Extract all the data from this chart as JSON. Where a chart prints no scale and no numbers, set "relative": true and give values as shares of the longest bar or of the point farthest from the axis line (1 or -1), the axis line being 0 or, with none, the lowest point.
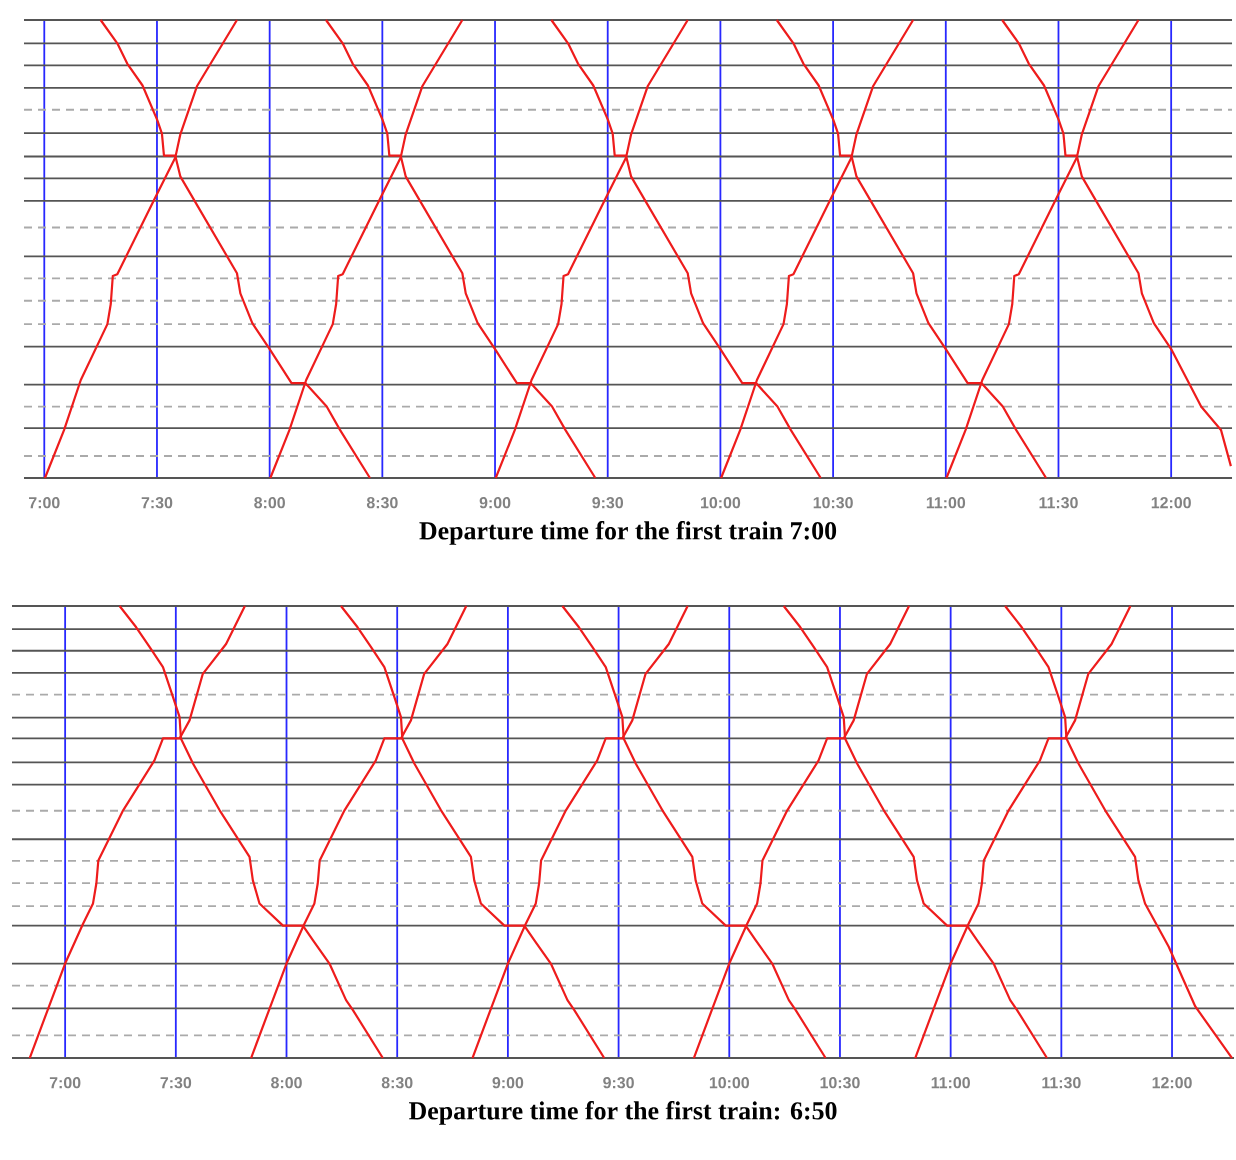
{
  "chart_data": [
    {
      "type": "line",
      "title": "Departure time for the first train 7:00",
      "relative": true,
      "grid": "x",
      "tick_labels": "x",
      "xlim": [
        6.91,
        12.27
      ],
      "xticks": [
        {
          "value": 7,
          "label": "7:00"
        },
        {
          "value": 7.5,
          "label": "7:30"
        },
        {
          "value": 8,
          "label": "8:00"
        },
        {
          "value": 8.5,
          "label": "8:30"
        },
        {
          "value": 9,
          "label": "9:00"
        },
        {
          "value": 9.5,
          "label": "9:30"
        },
        {
          "value": 10,
          "label": "10:00"
        },
        {
          "value": 10.5,
          "label": "10:30"
        },
        {
          "value": 11,
          "label": "11:00"
        },
        {
          "value": 11.5,
          "label": "11:30"
        },
        {
          "value": 12,
          "label": "12:00"
        }
      ],
      "ref_lines": [
        {
          "axis": "y",
          "value": 1.0,
          "line_style": "solid",
          "color": "#555555"
        },
        {
          "axis": "y",
          "value": 0.949,
          "line_style": "solid",
          "color": "#555555"
        },
        {
          "axis": "y",
          "value": 0.901,
          "line_style": "solid",
          "color": "#555555"
        },
        {
          "axis": "y",
          "value": 0.852,
          "line_style": "solid",
          "color": "#555555"
        },
        {
          "axis": "y",
          "value": 0.804,
          "line_style": "dashed",
          "color": "#aaaaaa"
        },
        {
          "axis": "y",
          "value": 0.753,
          "line_style": "solid",
          "color": "#555555"
        },
        {
          "axis": "y",
          "value": 0.702,
          "line_style": "solid",
          "color": "#555555"
        },
        {
          "axis": "y",
          "value": 0.654,
          "line_style": "solid",
          "color": "#555555"
        },
        {
          "axis": "y",
          "value": 0.605,
          "line_style": "solid",
          "color": "#555555"
        },
        {
          "axis": "y",
          "value": 0.547,
          "line_style": "dashed",
          "color": "#aaaaaa"
        },
        {
          "axis": "y",
          "value": 0.484,
          "line_style": "solid",
          "color": "#555555"
        },
        {
          "axis": "y",
          "value": 0.436,
          "line_style": "dashed",
          "color": "#aaaaaa"
        },
        {
          "axis": "y",
          "value": 0.387,
          "line_style": "dashed",
          "color": "#aaaaaa"
        },
        {
          "axis": "y",
          "value": 0.336,
          "line_style": "dashed",
          "color": "#aaaaaa"
        },
        {
          "axis": "y",
          "value": 0.287,
          "line_style": "solid",
          "color": "#555555"
        },
        {
          "axis": "y",
          "value": 0.204,
          "line_style": "solid",
          "color": "#555555"
        },
        {
          "axis": "y",
          "value": 0.156,
          "line_style": "dashed",
          "color": "#aaaaaa"
        },
        {
          "axis": "y",
          "value": 0.109,
          "line_style": "solid",
          "color": "#555555"
        },
        {
          "axis": "y",
          "value": 0.048,
          "line_style": "dashed",
          "color": "#aaaaaa"
        },
        {
          "axis": "y",
          "value": 0.0,
          "line_style": "solid",
          "color": "#555555"
        }
      ],
      "series": [
        {
          "color": "#ee1c1c",
          "x": [
            7.003,
            7.088,
            7.162,
            7.28,
            7.295,
            7.304,
            7.324,
            7.487,
            7.581,
            7.604,
            7.678,
            7.855
          ],
          "values": [
            0,
            0.105,
            0.214,
            0.336,
            0.38,
            0.441,
            0.445,
            0.607,
            0.699,
            0.751,
            0.856,
            1.0
          ]
        },
        {
          "color": "#ee1c1c",
          "x": [
            8.003,
            8.088,
            8.162,
            8.28,
            8.295,
            8.304,
            8.324,
            8.487,
            8.581,
            8.604,
            8.678,
            8.855
          ],
          "values": [
            0,
            0.105,
            0.214,
            0.336,
            0.38,
            0.441,
            0.445,
            0.607,
            0.699,
            0.751,
            0.856,
            1.0
          ]
        },
        {
          "color": "#ee1c1c",
          "x": [
            9.003,
            9.088,
            9.162,
            9.28,
            9.295,
            9.304,
            9.324,
            9.487,
            9.581,
            9.604,
            9.678,
            9.855
          ],
          "values": [
            0,
            0.105,
            0.214,
            0.336,
            0.38,
            0.441,
            0.445,
            0.607,
            0.699,
            0.751,
            0.856,
            1.0
          ]
        },
        {
          "color": "#ee1c1c",
          "x": [
            10.003,
            10.088,
            10.162,
            10.28,
            10.295,
            10.304,
            10.324,
            10.487,
            10.581,
            10.604,
            10.678,
            10.855
          ],
          "values": [
            0,
            0.105,
            0.214,
            0.336,
            0.38,
            0.441,
            0.445,
            0.607,
            0.699,
            0.751,
            0.856,
            1.0
          ]
        },
        {
          "color": "#ee1c1c",
          "x": [
            11.003,
            11.088,
            11.162,
            11.28,
            11.295,
            11.304,
            11.324,
            11.487,
            11.581,
            11.604,
            11.678,
            11.855
          ],
          "values": [
            0,
            0.105,
            0.214,
            0.336,
            0.38,
            0.441,
            0.445,
            0.607,
            0.699,
            0.751,
            0.856,
            1.0
          ]
        },
        {
          "color": "#ee1c1c",
          "x": [
            7.25,
            7.324,
            7.368,
            7.436,
            7.501,
            7.522,
            7.531,
            7.581,
            7.604,
            7.855,
            7.87,
            7.923,
            8.003,
            8.097,
            8.159,
            8.253,
            8.312,
            8.445
          ],
          "values": [
            1.0,
            0.949,
            0.905,
            0.857,
            0.782,
            0.752,
            0.704,
            0.704,
            0.658,
            0.447,
            0.403,
            0.338,
            0.279,
            0.207,
            0.207,
            0.156,
            0.105,
            0
          ]
        },
        {
          "color": "#ee1c1c",
          "x": [
            8.25,
            8.324,
            8.368,
            8.436,
            8.501,
            8.522,
            8.531,
            8.581,
            8.604,
            8.855,
            8.87,
            8.923,
            9.003,
            9.097,
            9.159,
            9.253,
            9.312,
            9.445
          ],
          "values": [
            1.0,
            0.949,
            0.905,
            0.857,
            0.782,
            0.752,
            0.704,
            0.704,
            0.658,
            0.447,
            0.403,
            0.338,
            0.279,
            0.207,
            0.207,
            0.156,
            0.105,
            0
          ]
        },
        {
          "color": "#ee1c1c",
          "x": [
            9.25,
            9.324,
            9.368,
            9.436,
            9.501,
            9.522,
            9.531,
            9.581,
            9.604,
            9.855,
            9.87,
            9.923,
            10.003,
            10.097,
            10.159,
            10.253,
            10.312,
            10.445
          ],
          "values": [
            1.0,
            0.949,
            0.905,
            0.857,
            0.782,
            0.752,
            0.704,
            0.704,
            0.658,
            0.447,
            0.403,
            0.338,
            0.279,
            0.207,
            0.207,
            0.156,
            0.105,
            0
          ]
        },
        {
          "color": "#ee1c1c",
          "x": [
            10.25,
            10.324,
            10.368,
            10.436,
            10.501,
            10.522,
            10.531,
            10.581,
            10.604,
            10.855,
            10.87,
            10.923,
            11.003,
            11.097,
            11.159,
            11.253,
            11.312,
            11.445
          ],
          "values": [
            1.0,
            0.949,
            0.905,
            0.857,
            0.782,
            0.752,
            0.704,
            0.704,
            0.658,
            0.447,
            0.403,
            0.338,
            0.279,
            0.207,
            0.207,
            0.156,
            0.105,
            0
          ]
        },
        {
          "color": "#ee1c1c",
          "x": [
            11.25,
            11.324,
            11.368,
            11.436,
            11.501,
            11.522,
            11.531,
            11.581,
            11.604,
            11.855,
            11.87,
            11.923,
            12.003,
            12.133,
            12.221,
            12.265
          ],
          "values": [
            1.0,
            0.949,
            0.905,
            0.857,
            0.782,
            0.752,
            0.704,
            0.704,
            0.658,
            0.447,
            0.403,
            0.338,
            0.279,
            0.156,
            0.105,
            0.026
          ]
        }
      ]
    },
    {
      "type": "line",
      "title": "Departure time for the first train: 6:50",
      "relative": true,
      "grid": "x",
      "tick_labels": "x",
      "xlim": [
        6.76,
        12.28
      ],
      "xticks": [
        {
          "value": 7,
          "label": "7:00"
        },
        {
          "value": 7.5,
          "label": "7:30"
        },
        {
          "value": 8,
          "label": "8:00"
        },
        {
          "value": 8.5,
          "label": "8:30"
        },
        {
          "value": 9,
          "label": "9:00"
        },
        {
          "value": 9.5,
          "label": "9:30"
        },
        {
          "value": 10,
          "label": "10:00"
        },
        {
          "value": 10.5,
          "label": "10:30"
        },
        {
          "value": 11,
          "label": "11:00"
        },
        {
          "value": 11.5,
          "label": "11:30"
        },
        {
          "value": 12,
          "label": "12:00"
        }
      ],
      "ref_lines": [
        {
          "axis": "y",
          "value": 1.0,
          "line_style": "solid",
          "color": "#555555"
        },
        {
          "axis": "y",
          "value": 0.949,
          "line_style": "solid",
          "color": "#555555"
        },
        {
          "axis": "y",
          "value": 0.901,
          "line_style": "solid",
          "color": "#555555"
        },
        {
          "axis": "y",
          "value": 0.852,
          "line_style": "solid",
          "color": "#555555"
        },
        {
          "axis": "y",
          "value": 0.804,
          "line_style": "dashed",
          "color": "#aaaaaa"
        },
        {
          "axis": "y",
          "value": 0.753,
          "line_style": "solid",
          "color": "#555555"
        },
        {
          "axis": "y",
          "value": 0.707,
          "line_style": "solid",
          "color": "#555555"
        },
        {
          "axis": "y",
          "value": 0.654,
          "line_style": "solid",
          "color": "#555555"
        },
        {
          "axis": "y",
          "value": 0.605,
          "line_style": "solid",
          "color": "#555555"
        },
        {
          "axis": "y",
          "value": 0.547,
          "line_style": "dashed",
          "color": "#aaaaaa"
        },
        {
          "axis": "y",
          "value": 0.484,
          "line_style": "solid",
          "color": "#555555"
        },
        {
          "axis": "y",
          "value": 0.436,
          "line_style": "dashed",
          "color": "#aaaaaa"
        },
        {
          "axis": "y",
          "value": 0.387,
          "line_style": "dashed",
          "color": "#aaaaaa"
        },
        {
          "axis": "y",
          "value": 0.336,
          "line_style": "dashed",
          "color": "#aaaaaa"
        },
        {
          "axis": "y",
          "value": 0.293,
          "line_style": "solid",
          "color": "#555555"
        },
        {
          "axis": "y",
          "value": 0.209,
          "line_style": "solid",
          "color": "#555555"
        },
        {
          "axis": "y",
          "value": 0.16,
          "line_style": "dashed",
          "color": "#aaaaaa"
        },
        {
          "axis": "y",
          "value": 0.11,
          "line_style": "solid",
          "color": "#555555"
        },
        {
          "axis": "y",
          "value": 0.05,
          "line_style": "dashed",
          "color": "#aaaaaa"
        },
        {
          "axis": "y",
          "value": 0.0,
          "line_style": "solid",
          "color": "#555555"
        }
      ],
      "series": [
        {
          "color": "#ee1c1c",
          "x": [
            6.84,
            6.921,
            7.0,
            7.081,
            7.126,
            7.141,
            7.15,
            7.262,
            7.403,
            7.442,
            7.517,
            7.562,
            7.622,
            7.727,
            7.812
          ],
          "values": [
            0,
            0.106,
            0.209,
            0.297,
            0.342,
            0.386,
            0.437,
            0.548,
            0.658,
            0.707,
            0.707,
            0.747,
            0.85,
            0.916,
            1.0
          ]
        },
        {
          "color": "#ee1c1c",
          "x": [
            7.84,
            7.921,
            8.0,
            8.081,
            8.126,
            8.141,
            8.15,
            8.262,
            8.403,
            8.442,
            8.517,
            8.562,
            8.622,
            8.727,
            8.812
          ],
          "values": [
            0,
            0.106,
            0.209,
            0.297,
            0.342,
            0.386,
            0.437,
            0.548,
            0.658,
            0.707,
            0.707,
            0.747,
            0.85,
            0.916,
            1.0
          ]
        },
        {
          "color": "#ee1c1c",
          "x": [
            8.84,
            8.921,
            9.0,
            9.081,
            9.126,
            9.141,
            9.15,
            9.262,
            9.403,
            9.442,
            9.517,
            9.562,
            9.622,
            9.727,
            9.812
          ],
          "values": [
            0,
            0.106,
            0.209,
            0.297,
            0.342,
            0.386,
            0.437,
            0.548,
            0.658,
            0.707,
            0.707,
            0.747,
            0.85,
            0.916,
            1.0
          ]
        },
        {
          "color": "#ee1c1c",
          "x": [
            9.84,
            9.921,
            10.0,
            10.081,
            10.126,
            10.141,
            10.15,
            10.262,
            10.403,
            10.442,
            10.517,
            10.562,
            10.622,
            10.727,
            10.812
          ],
          "values": [
            0,
            0.106,
            0.209,
            0.297,
            0.342,
            0.386,
            0.437,
            0.548,
            0.658,
            0.707,
            0.707,
            0.747,
            0.85,
            0.916,
            1.0
          ]
        },
        {
          "color": "#ee1c1c",
          "x": [
            10.84,
            10.921,
            11.0,
            11.081,
            11.126,
            11.141,
            11.15,
            11.262,
            11.403,
            11.442,
            11.517,
            11.562,
            11.622,
            11.727,
            11.812
          ],
          "values": [
            0,
            0.106,
            0.209,
            0.297,
            0.342,
            0.386,
            0.437,
            0.548,
            0.658,
            0.707,
            0.707,
            0.747,
            0.85,
            0.916,
            1.0
          ]
        },
        {
          "color": "#ee1c1c",
          "x": [
            7.246,
            7.321,
            7.382,
            7.442,
            7.487,
            7.517,
            7.523,
            7.578,
            7.698,
            7.833,
            7.848,
            7.878,
            7.984,
            8.074,
            8.119,
            8.194,
            8.269,
            8.3,
            8.435
          ],
          "values": [
            1,
            0.953,
            0.909,
            0.865,
            0.799,
            0.754,
            0.707,
            0.651,
            0.548,
            0.445,
            0.393,
            0.342,
            0.293,
            0.293,
            0.261,
            0.209,
            0.128,
            0.106,
            0
          ]
        },
        {
          "color": "#ee1c1c",
          "x": [
            8.246,
            8.321,
            8.382,
            8.442,
            8.487,
            8.517,
            8.523,
            8.578,
            8.698,
            8.833,
            8.848,
            8.878,
            8.984,
            9.074,
            9.119,
            9.194,
            9.269,
            9.3,
            9.435
          ],
          "values": [
            1,
            0.953,
            0.909,
            0.865,
            0.799,
            0.754,
            0.707,
            0.651,
            0.548,
            0.445,
            0.393,
            0.342,
            0.293,
            0.293,
            0.261,
            0.209,
            0.128,
            0.106,
            0
          ]
        },
        {
          "color": "#ee1c1c",
          "x": [
            9.246,
            9.321,
            9.382,
            9.442,
            9.487,
            9.517,
            9.523,
            9.578,
            9.698,
            9.833,
            9.848,
            9.878,
            9.984,
            10.074,
            10.119,
            10.194,
            10.269,
            10.3,
            10.435
          ],
          "values": [
            1,
            0.953,
            0.909,
            0.865,
            0.799,
            0.754,
            0.707,
            0.651,
            0.548,
            0.445,
            0.393,
            0.342,
            0.293,
            0.293,
            0.261,
            0.209,
            0.128,
            0.106,
            0
          ]
        },
        {
          "color": "#ee1c1c",
          "x": [
            10.246,
            10.321,
            10.382,
            10.442,
            10.487,
            10.517,
            10.523,
            10.578,
            10.698,
            10.833,
            10.848,
            10.878,
            10.984,
            11.074,
            11.119,
            11.194,
            11.269,
            11.3,
            11.435
          ],
          "values": [
            1,
            0.953,
            0.909,
            0.865,
            0.799,
            0.754,
            0.707,
            0.651,
            0.548,
            0.445,
            0.393,
            0.342,
            0.293,
            0.293,
            0.261,
            0.209,
            0.128,
            0.106,
            0
          ]
        },
        {
          "color": "#ee1c1c",
          "x": [
            11.246,
            11.321,
            11.382,
            11.442,
            11.487,
            11.517,
            11.523,
            11.578,
            11.698,
            11.833,
            11.848,
            11.878,
            11.985,
            12.105,
            12.271
          ],
          "values": [
            1,
            0.953,
            0.909,
            0.865,
            0.799,
            0.754,
            0.707,
            0.651,
            0.548,
            0.445,
            0.393,
            0.342,
            0.246,
            0.114,
            0
          ]
        }
      ]
    }
  ]
}
